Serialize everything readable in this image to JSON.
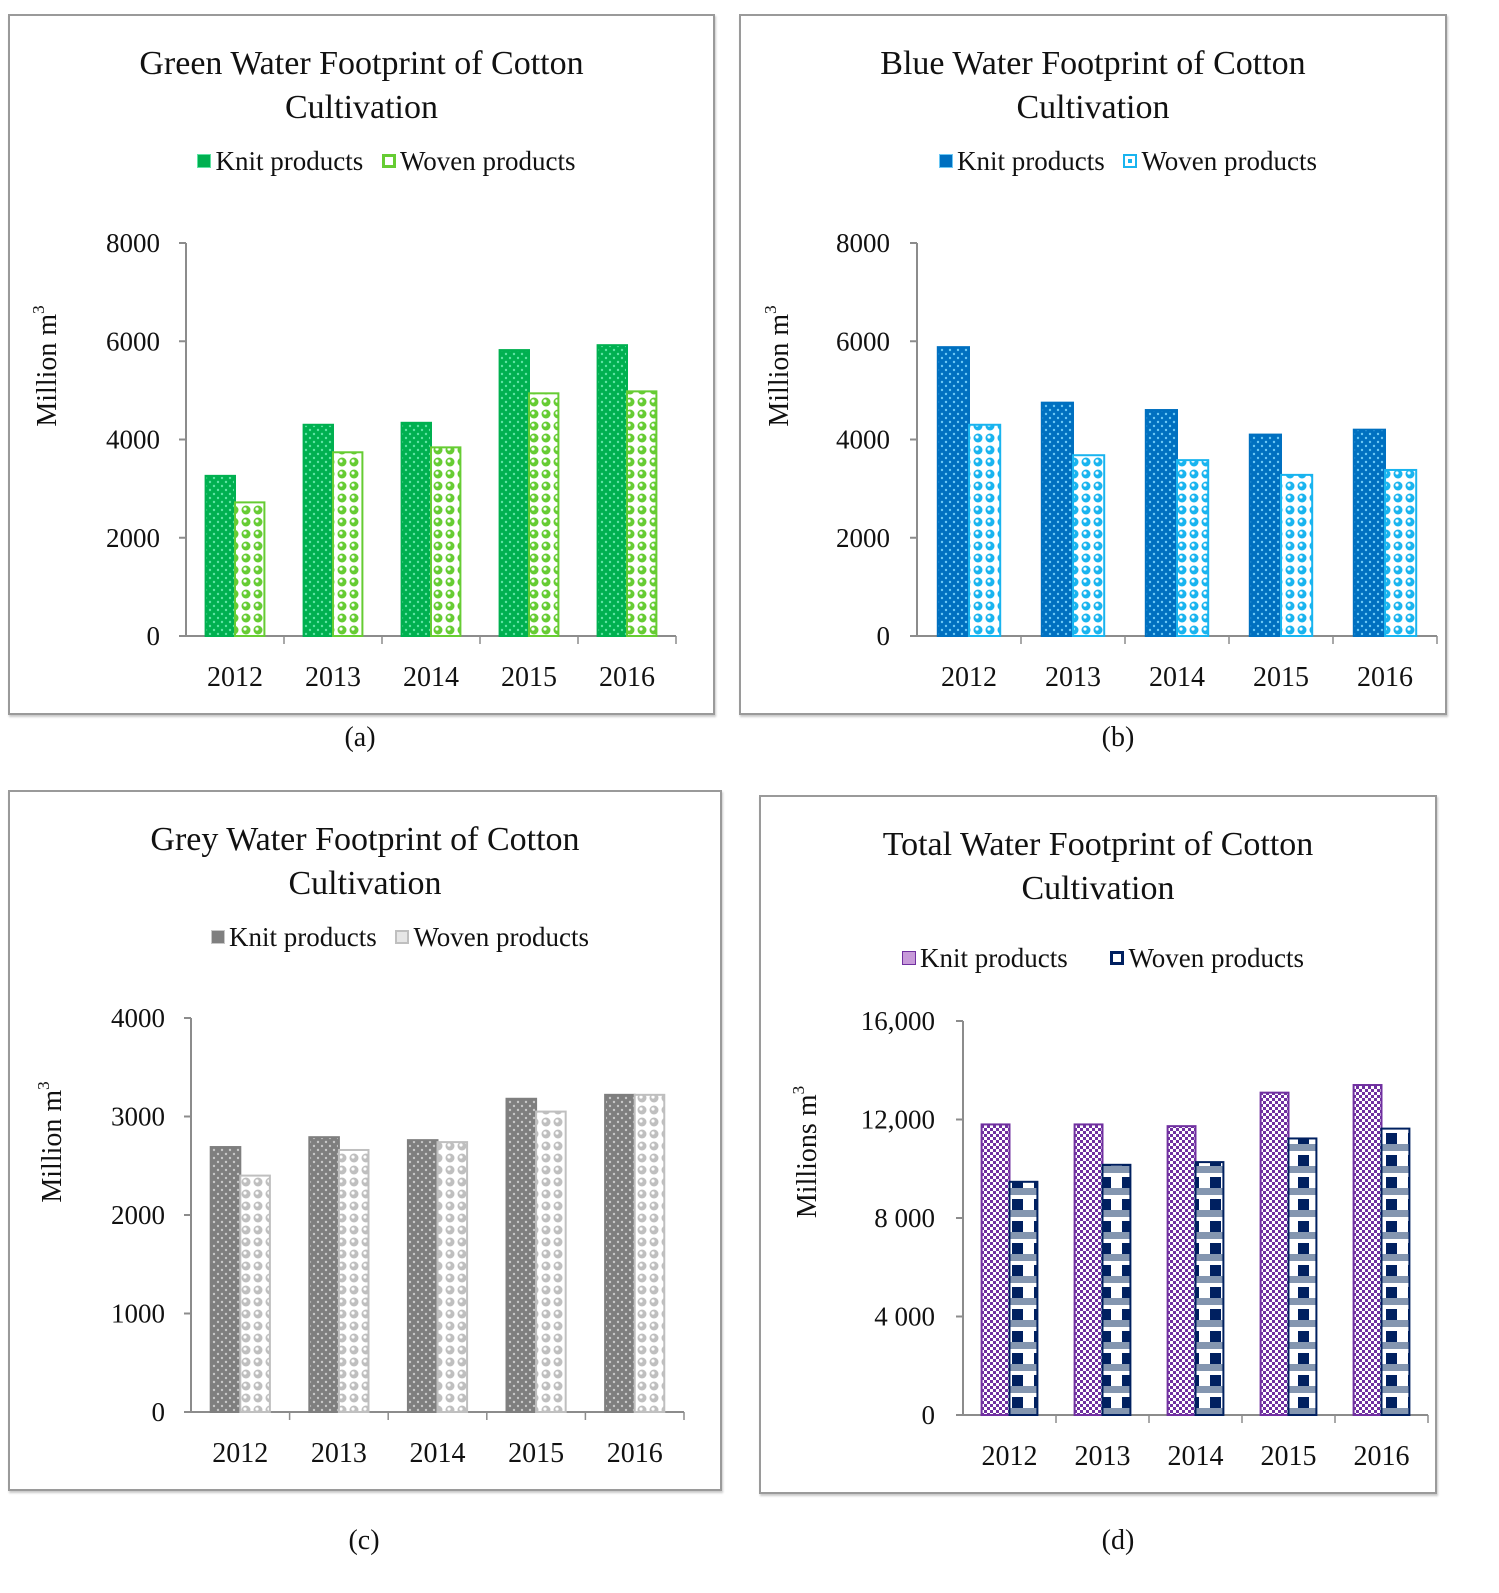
{
  "chart_data": [
    {
      "id": "a",
      "type": "bar",
      "title": "Green Water Footprint of Cotton Cultivation",
      "title_lines": [
        "Green Water Footprint of Cotton",
        "Cultivation"
      ],
      "xlabel": "",
      "ylabel": "Million m",
      "ylabel_sup": "3",
      "categories": [
        "2012",
        "2013",
        "2014",
        "2015",
        "2016"
      ],
      "ylim": [
        0,
        8000
      ],
      "yticks": [
        0,
        2000,
        4000,
        6000,
        8000
      ],
      "ytick_labels": [
        "0",
        "2000",
        "4000",
        "6000",
        "8000"
      ],
      "grid": false,
      "legend_position": "top",
      "series": [
        {
          "name": "Knit products",
          "values": [
            3260,
            4300,
            4340,
            5820,
            5920
          ],
          "color": "#00b050",
          "pattern": "dots",
          "dot_color": "#5fe3a4"
        },
        {
          "name": "Woven products",
          "values": [
            2720,
            3740,
            3840,
            4940,
            4980
          ],
          "color": "#66cc33",
          "pattern": "circles",
          "dot_color": "#ffffff"
        }
      ],
      "caption": "(a)"
    },
    {
      "id": "b",
      "type": "bar",
      "title": "Blue Water Footprint of Cotton Cultivation",
      "title_lines": [
        "Blue Water Footprint of Cotton",
        "Cultivation"
      ],
      "xlabel": "",
      "ylabel": "Million m",
      "ylabel_sup": "3",
      "categories": [
        "2012",
        "2013",
        "2014",
        "2015",
        "2016"
      ],
      "ylim": [
        0,
        8000
      ],
      "yticks": [
        0,
        2000,
        4000,
        6000,
        8000
      ],
      "ytick_labels": [
        "0",
        "2000",
        "4000",
        "6000",
        "8000"
      ],
      "grid": false,
      "legend_position": "top",
      "series": [
        {
          "name": "Knit products",
          "values": [
            5880,
            4750,
            4600,
            4100,
            4200
          ],
          "color": "#0070c0",
          "pattern": "dots",
          "dot_color": "#6cc8f5"
        },
        {
          "name": "Woven products",
          "values": [
            4300,
            3680,
            3580,
            3280,
            3380
          ],
          "color": "#19b4ef",
          "pattern": "circles",
          "dot_color": "#ffffff"
        }
      ],
      "caption": "(b)"
    },
    {
      "id": "c",
      "type": "bar",
      "title": "Grey Water Footprint of Cotton Cultivation",
      "title_lines": [
        "Grey Water Footprint of Cotton",
        "Cultivation"
      ],
      "xlabel": "",
      "ylabel": "Million m",
      "ylabel_sup": "3",
      "categories": [
        "2012",
        "2013",
        "2014",
        "2015",
        "2016"
      ],
      "ylim": [
        0,
        4000
      ],
      "yticks": [
        0,
        1000,
        2000,
        3000,
        4000
      ],
      "ytick_labels": [
        "0",
        "1000",
        "2000",
        "3000",
        "4000"
      ],
      "grid": false,
      "legend_position": "top",
      "series": [
        {
          "name": "Knit products",
          "values": [
            2690,
            2790,
            2760,
            3180,
            3220
          ],
          "color": "#7f7f7f",
          "pattern": "dots",
          "dot_color": "#c8c8c8"
        },
        {
          "name": "Woven products",
          "values": [
            2400,
            2660,
            2740,
            3050,
            3220
          ],
          "color": "#bfbfbf",
          "pattern": "circles",
          "dot_color": "#ffffff"
        }
      ],
      "caption": "(c)"
    },
    {
      "id": "d",
      "type": "bar",
      "title": "Total Water Footprint of Cotton Cultivation",
      "title_lines": [
        "Total Water Footprint of Cotton",
        "Cultivation"
      ],
      "xlabel": "",
      "ylabel": "Millions m",
      "ylabel_sup": "3",
      "categories": [
        "2012",
        "2013",
        "2014",
        "2015",
        "2016"
      ],
      "ylim": [
        0,
        16000
      ],
      "yticks": [
        0,
        4000,
        8000,
        12000,
        16000
      ],
      "ytick_labels": [
        "0",
        "4 000",
        "8 000",
        "12,000",
        "16,000"
      ],
      "grid": false,
      "legend_position": "top",
      "series": [
        {
          "name": "Knit products",
          "values": [
            11800,
            11800,
            11730,
            13090,
            13400
          ],
          "color": "#7030a0",
          "pattern": "checker",
          "dot_color": "#ffffff"
        },
        {
          "name": "Woven products",
          "values": [
            9470,
            10160,
            10270,
            11230,
            11630
          ],
          "color": "#002060",
          "pattern": "plaid",
          "dot_color": "#ffffff"
        }
      ],
      "caption": "(d)"
    }
  ]
}
